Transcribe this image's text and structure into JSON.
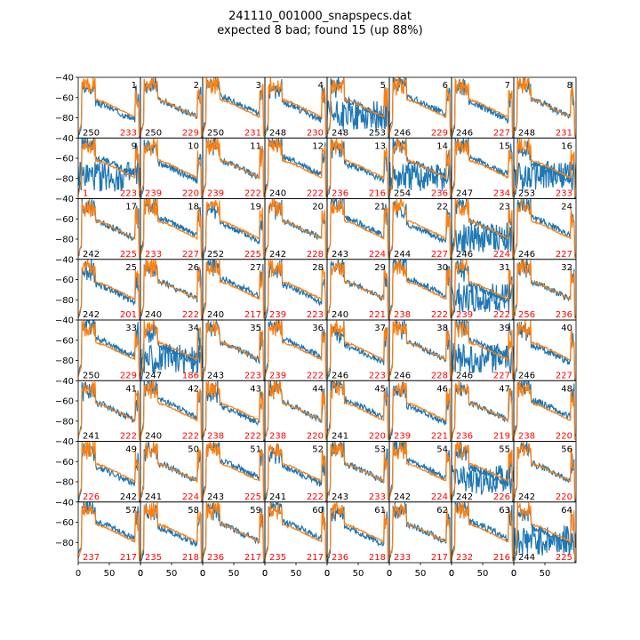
{
  "chart_data": {
    "type": "line",
    "title": "241110_001000_snapspecs.dat",
    "subtitle": "expected 8 bad; found 15 (up 88%)",
    "grid": "8x8 panels",
    "xlim": [
      0,
      100
    ],
    "ylim": [
      -100,
      -40
    ],
    "x_ticks": [
      "0",
      "50",
      "0"
    ],
    "y_ticks": [
      "-40",
      "-60",
      "-80"
    ],
    "colors": {
      "series_a": "#1f77b4",
      "series_b": "#ff7f0e",
      "bad_label": "#ff0000",
      "ok_label": "#000000"
    },
    "panels": [
      {
        "id": "1",
        "left": "250",
        "right": "233",
        "rightBad": true,
        "leftBad": false,
        "blueExtra": false
      },
      {
        "id": "2",
        "left": "250",
        "right": "229",
        "rightBad": true,
        "leftBad": false,
        "blueExtra": false
      },
      {
        "id": "3",
        "left": "250",
        "right": "231",
        "rightBad": true,
        "leftBad": false,
        "blueExtra": false
      },
      {
        "id": "4",
        "left": "248",
        "right": "230",
        "rightBad": true,
        "leftBad": false,
        "blueExtra": false
      },
      {
        "id": "5",
        "left": "248",
        "right": "253",
        "rightBad": false,
        "leftBad": false,
        "blueExtra": true
      },
      {
        "id": "6",
        "left": "246",
        "right": "229",
        "rightBad": true,
        "leftBad": false,
        "blueExtra": false
      },
      {
        "id": "7",
        "left": "246",
        "right": "227",
        "rightBad": true,
        "leftBad": false,
        "blueExtra": false
      },
      {
        "id": "8",
        "left": "248",
        "right": "231",
        "rightBad": true,
        "leftBad": false,
        "blueExtra": false
      },
      {
        "id": "9",
        "left": "1",
        "right": "223",
        "rightBad": true,
        "leftBad": true,
        "blueExtra": true
      },
      {
        "id": "10",
        "left": "239",
        "right": "220",
        "rightBad": true,
        "leftBad": true,
        "blueExtra": false
      },
      {
        "id": "11",
        "left": "239",
        "right": "222",
        "rightBad": true,
        "leftBad": true,
        "blueExtra": false
      },
      {
        "id": "12",
        "left": "240",
        "right": "222",
        "rightBad": true,
        "leftBad": false,
        "blueExtra": false
      },
      {
        "id": "13",
        "left": "236",
        "right": "216",
        "rightBad": true,
        "leftBad": true,
        "blueExtra": false
      },
      {
        "id": "14",
        "left": "254",
        "right": "236",
        "rightBad": true,
        "leftBad": false,
        "blueExtra": true
      },
      {
        "id": "15",
        "left": "247",
        "right": "234",
        "rightBad": true,
        "leftBad": false,
        "blueExtra": false
      },
      {
        "id": "16",
        "left": "253",
        "right": "233",
        "rightBad": true,
        "leftBad": false,
        "blueExtra": true
      },
      {
        "id": "17",
        "left": "242",
        "right": "225",
        "rightBad": true,
        "leftBad": false,
        "blueExtra": false
      },
      {
        "id": "18",
        "left": "233",
        "right": "227",
        "rightBad": true,
        "leftBad": true,
        "blueExtra": false
      },
      {
        "id": "19",
        "left": "252",
        "right": "225",
        "rightBad": true,
        "leftBad": false,
        "blueExtra": false
      },
      {
        "id": "20",
        "left": "242",
        "right": "228",
        "rightBad": true,
        "leftBad": false,
        "blueExtra": false
      },
      {
        "id": "21",
        "left": "243",
        "right": "224",
        "rightBad": true,
        "leftBad": false,
        "blueExtra": false
      },
      {
        "id": "22",
        "left": "244",
        "right": "227",
        "rightBad": true,
        "leftBad": false,
        "blueExtra": false
      },
      {
        "id": "23",
        "left": "246",
        "right": "224",
        "rightBad": true,
        "leftBad": false,
        "blueExtra": true
      },
      {
        "id": "24",
        "left": "246",
        "right": "227",
        "rightBad": true,
        "leftBad": false,
        "blueExtra": false
      },
      {
        "id": "25",
        "left": "242",
        "right": "201",
        "rightBad": true,
        "leftBad": false,
        "blueExtra": false
      },
      {
        "id": "26",
        "left": "240",
        "right": "222",
        "rightBad": true,
        "leftBad": false,
        "blueExtra": false
      },
      {
        "id": "27",
        "left": "240",
        "right": "217",
        "rightBad": true,
        "leftBad": false,
        "blueExtra": false
      },
      {
        "id": "28",
        "left": "239",
        "right": "223",
        "rightBad": true,
        "leftBad": true,
        "blueExtra": false
      },
      {
        "id": "29",
        "left": "240",
        "right": "221",
        "rightBad": true,
        "leftBad": false,
        "blueExtra": false
      },
      {
        "id": "30",
        "left": "238",
        "right": "222",
        "rightBad": true,
        "leftBad": true,
        "blueExtra": false
      },
      {
        "id": "31",
        "left": "239",
        "right": "222",
        "rightBad": true,
        "leftBad": true,
        "blueExtra": true
      },
      {
        "id": "32",
        "left": "256",
        "right": "236",
        "rightBad": true,
        "leftBad": true,
        "blueExtra": false
      },
      {
        "id": "33",
        "left": "250",
        "right": "229",
        "rightBad": true,
        "leftBad": false,
        "blueExtra": false
      },
      {
        "id": "34",
        "left": "247",
        "right": "186",
        "rightBad": true,
        "leftBad": false,
        "blueExtra": true
      },
      {
        "id": "35",
        "left": "243",
        "right": "223",
        "rightBad": true,
        "leftBad": false,
        "blueExtra": false
      },
      {
        "id": "36",
        "left": "239",
        "right": "222",
        "rightBad": true,
        "leftBad": true,
        "blueExtra": false
      },
      {
        "id": "37",
        "left": "246",
        "right": "223",
        "rightBad": true,
        "leftBad": false,
        "blueExtra": false
      },
      {
        "id": "38",
        "left": "246",
        "right": "228",
        "rightBad": true,
        "leftBad": false,
        "blueExtra": false
      },
      {
        "id": "39",
        "left": "246",
        "right": "227",
        "rightBad": true,
        "leftBad": false,
        "blueExtra": true
      },
      {
        "id": "40",
        "left": "246",
        "right": "227",
        "rightBad": true,
        "leftBad": false,
        "blueExtra": false
      },
      {
        "id": "41",
        "left": "241",
        "right": "222",
        "rightBad": true,
        "leftBad": false,
        "blueExtra": false
      },
      {
        "id": "42",
        "left": "240",
        "right": "222",
        "rightBad": true,
        "leftBad": false,
        "blueExtra": false
      },
      {
        "id": "43",
        "left": "238",
        "right": "222",
        "rightBad": true,
        "leftBad": true,
        "blueExtra": false
      },
      {
        "id": "44",
        "left": "238",
        "right": "220",
        "rightBad": true,
        "leftBad": true,
        "blueExtra": false
      },
      {
        "id": "45",
        "left": "241",
        "right": "220",
        "rightBad": true,
        "leftBad": false,
        "blueExtra": false
      },
      {
        "id": "46",
        "left": "239",
        "right": "221",
        "rightBad": true,
        "leftBad": true,
        "blueExtra": false
      },
      {
        "id": "47",
        "left": "236",
        "right": "219",
        "rightBad": true,
        "leftBad": true,
        "blueExtra": false
      },
      {
        "id": "48",
        "left": "238",
        "right": "220",
        "rightBad": true,
        "leftBad": true,
        "blueExtra": false
      },
      {
        "id": "49",
        "left": "226",
        "right": "242",
        "rightBad": false,
        "leftBad": true,
        "blueExtra": false
      },
      {
        "id": "50",
        "left": "241",
        "right": "224",
        "rightBad": true,
        "leftBad": false,
        "blueExtra": false
      },
      {
        "id": "51",
        "left": "243",
        "right": "225",
        "rightBad": true,
        "leftBad": false,
        "blueExtra": false
      },
      {
        "id": "52",
        "left": "241",
        "right": "222",
        "rightBad": true,
        "leftBad": false,
        "blueExtra": false
      },
      {
        "id": "53",
        "left": "243",
        "right": "233",
        "rightBad": true,
        "leftBad": false,
        "blueExtra": false
      },
      {
        "id": "54",
        "left": "242",
        "right": "224",
        "rightBad": true,
        "leftBad": false,
        "blueExtra": false
      },
      {
        "id": "55",
        "left": "242",
        "right": "226",
        "rightBad": true,
        "leftBad": false,
        "blueExtra": true
      },
      {
        "id": "56",
        "left": "242",
        "right": "220",
        "rightBad": true,
        "leftBad": false,
        "blueExtra": false
      },
      {
        "id": "57",
        "left": "237",
        "right": "217",
        "rightBad": true,
        "leftBad": true,
        "blueExtra": false
      },
      {
        "id": "58",
        "left": "235",
        "right": "218",
        "rightBad": true,
        "leftBad": true,
        "blueExtra": false
      },
      {
        "id": "59",
        "left": "236",
        "right": "217",
        "rightBad": true,
        "leftBad": true,
        "blueExtra": false
      },
      {
        "id": "60",
        "left": "235",
        "right": "217",
        "rightBad": true,
        "leftBad": true,
        "blueExtra": false
      },
      {
        "id": "61",
        "left": "236",
        "right": "218",
        "rightBad": true,
        "leftBad": true,
        "blueExtra": false
      },
      {
        "id": "62",
        "left": "233",
        "right": "217",
        "rightBad": true,
        "leftBad": true,
        "blueExtra": false
      },
      {
        "id": "63",
        "left": "232",
        "right": "216",
        "rightBad": true,
        "leftBad": true,
        "blueExtra": false
      },
      {
        "id": "64",
        "left": "244",
        "right": "225",
        "rightBad": true,
        "leftBad": false,
        "blueExtra": true
      }
    ]
  }
}
